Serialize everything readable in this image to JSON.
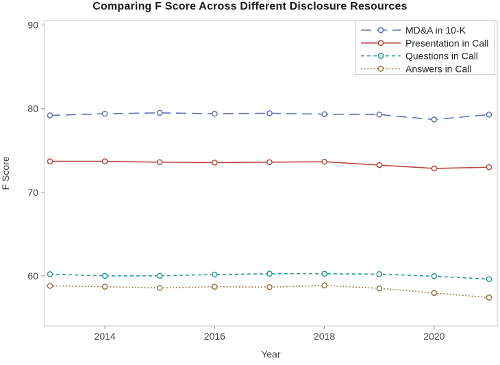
{
  "figure": {
    "background_color": "#FFFFFF"
  },
  "chart_data": {
    "type": "line",
    "title": "Comparing F Score Across Different Disclosure Resources",
    "xlabel": "Year",
    "ylabel": "F Score",
    "x": [
      2013,
      2014,
      2015,
      2016,
      2017,
      2018,
      2019,
      2020,
      2021
    ],
    "xticks": [
      2014,
      2016,
      2018,
      2020
    ],
    "yticks": [
      60,
      70,
      80,
      90
    ],
    "xlim": [
      2012.9,
      2021.15
    ],
    "ylim": [
      54.0,
      90.55
    ],
    "grid": false,
    "legend_position": "top-right",
    "series": [
      {
        "name": "MD&A in 10-K",
        "color": "#6272B8",
        "dash": "15,8",
        "marker": "open-circle",
        "values": [
          79.2,
          79.4,
          79.5,
          79.4,
          79.45,
          79.35,
          79.3,
          78.7,
          79.3
        ]
      },
      {
        "name": "Presentation in Call",
        "color": "#B84A41",
        "dash": "",
        "marker": "open-circle",
        "values": [
          73.7,
          73.7,
          73.6,
          73.55,
          73.6,
          73.65,
          73.25,
          72.85,
          73.0
        ]
      },
      {
        "name": "Questions in Call",
        "color": "#2B9C8C",
        "dash": "5,4",
        "marker": "open-circle",
        "values": [
          60.2,
          60.0,
          60.0,
          60.15,
          60.25,
          60.25,
          60.2,
          59.95,
          59.6
        ]
      },
      {
        "name": "Answers in Call",
        "color": "#9A7245",
        "dash": "1.8,2.8",
        "marker": "open-circle",
        "values": [
          58.8,
          58.7,
          58.55,
          58.7,
          58.65,
          58.85,
          58.5,
          57.95,
          57.4
        ]
      }
    ],
    "style": {
      "frame_color": "#C8C8C8",
      "tick_mark_color": "#909090",
      "tick_label_color": "#404040",
      "axis_title_color": "#404040",
      "legend_text_color": "#262626",
      "legend_border_color": "#C8C8C8",
      "marker_fill": "#FFFFFF"
    }
  }
}
